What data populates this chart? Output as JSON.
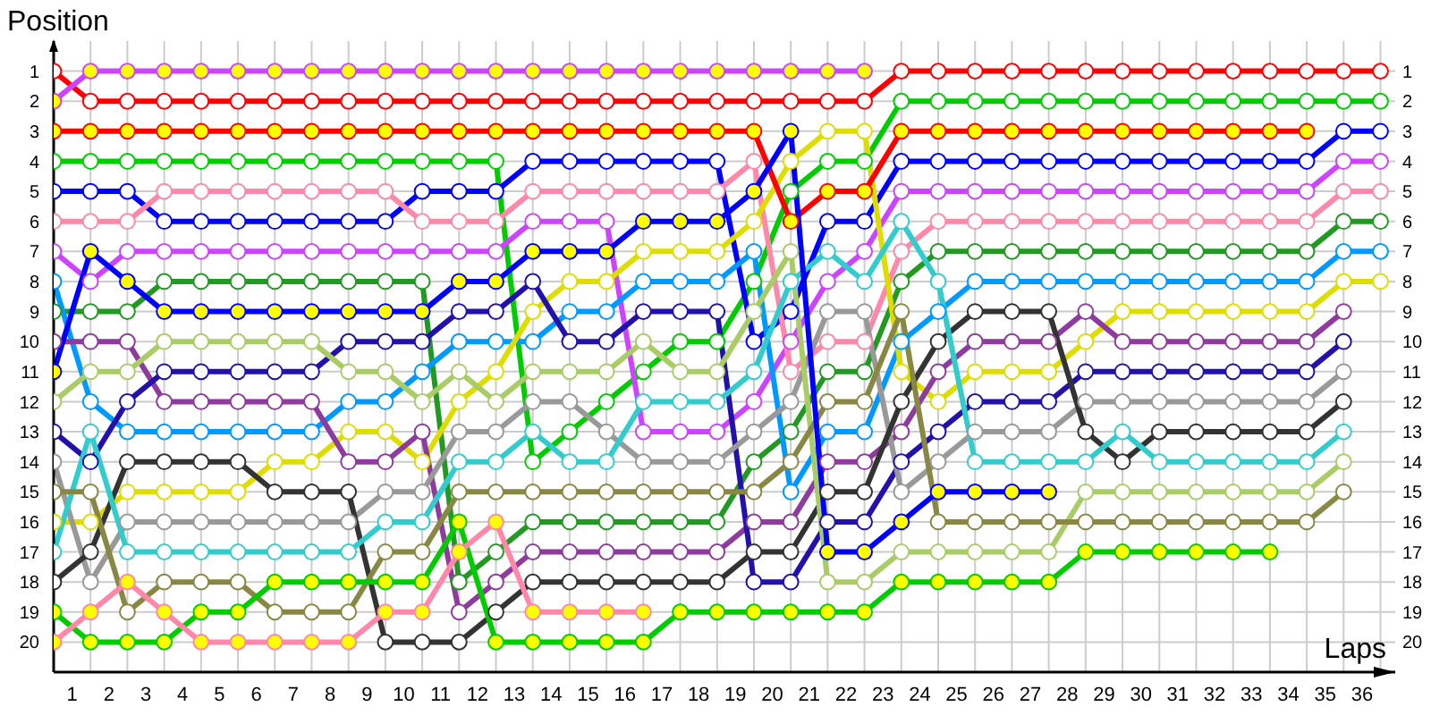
{
  "chart_data": {
    "type": "line",
    "xlabel": "Laps",
    "ylabel": "Position",
    "x": [
      0,
      1,
      2,
      3,
      4,
      5,
      6,
      7,
      8,
      9,
      10,
      11,
      12,
      13,
      14,
      15,
      16,
      17,
      18,
      19,
      20,
      21,
      22,
      23,
      24,
      25,
      26,
      27,
      28,
      29,
      30,
      31,
      32,
      33,
      34,
      35,
      36
    ],
    "xlim": [
      0,
      36.4
    ],
    "xticks": [
      {
        "value": 0.5,
        "label": "1"
      },
      {
        "value": 1.5,
        "label": "2"
      },
      {
        "value": 2.5,
        "label": "3"
      },
      {
        "value": 3.5,
        "label": "4"
      },
      {
        "value": 4.5,
        "label": "5"
      },
      {
        "value": 5.5,
        "label": "6"
      },
      {
        "value": 6.5,
        "label": "7"
      },
      {
        "value": 7.5,
        "label": "8"
      },
      {
        "value": 8.5,
        "label": "9"
      },
      {
        "value": 9.5,
        "label": "10"
      },
      {
        "value": 10.5,
        "label": "11"
      },
      {
        "value": 11.5,
        "label": "12"
      },
      {
        "value": 12.5,
        "label": "13"
      },
      {
        "value": 13.5,
        "label": "14"
      },
      {
        "value": 14.5,
        "label": "15"
      },
      {
        "value": 15.5,
        "label": "16"
      },
      {
        "value": 16.5,
        "label": "17"
      },
      {
        "value": 17.5,
        "label": "18"
      },
      {
        "value": 18.5,
        "label": "19"
      },
      {
        "value": 19.5,
        "label": "20"
      },
      {
        "value": 20.5,
        "label": "21"
      },
      {
        "value": 21.5,
        "label": "22"
      },
      {
        "value": 22.5,
        "label": "23"
      },
      {
        "value": 23.5,
        "label": "24"
      },
      {
        "value": 24.5,
        "label": "25"
      },
      {
        "value": 25.5,
        "label": "26"
      },
      {
        "value": 26.5,
        "label": "27"
      },
      {
        "value": 27.5,
        "label": "28"
      },
      {
        "value": 28.5,
        "label": "29"
      },
      {
        "value": 29.5,
        "label": "30"
      },
      {
        "value": 30.5,
        "label": "31"
      },
      {
        "value": 31.5,
        "label": "32"
      },
      {
        "value": 32.5,
        "label": "33"
      },
      {
        "value": 33.5,
        "label": "34"
      },
      {
        "value": 34.5,
        "label": "35"
      },
      {
        "value": 35.5,
        "label": "36"
      }
    ],
    "ylim": [
      21,
      0
    ],
    "yticks": [
      1,
      2,
      3,
      4,
      5,
      6,
      7,
      8,
      9,
      10,
      11,
      12,
      13,
      14,
      15,
      16,
      17,
      18,
      19,
      20
    ],
    "y2lim": [
      21,
      0
    ],
    "y2ticks": [
      1,
      2,
      3,
      4,
      5,
      6,
      7,
      8,
      9,
      10,
      11,
      12,
      13,
      14,
      15,
      16,
      17,
      18,
      19,
      20
    ],
    "grid": true,
    "marker": "circle",
    "line_style": "solid",
    "series": [
      {
        "color": "#ff0000",
        "values": [
          1,
          2,
          2,
          2,
          2,
          2,
          2,
          2,
          2,
          2,
          2,
          2,
          2,
          2,
          2,
          2,
          2,
          2,
          2,
          2,
          2,
          2,
          2,
          1,
          1,
          1,
          1,
          1,
          1,
          1,
          1,
          1,
          1,
          1,
          1,
          1,
          1
        ]
      },
      {
        "color": "#00cc00",
        "values": [
          4,
          4,
          4,
          4,
          4,
          4,
          4,
          4,
          4,
          4,
          4,
          4,
          4,
          14,
          13,
          12,
          11,
          10,
          10,
          8,
          5,
          4,
          4,
          2,
          2,
          2,
          2,
          2,
          2,
          2,
          2,
          2,
          2,
          2,
          2,
          2,
          2
        ]
      },
      {
        "color": "#0000ff",
        "values": [
          5,
          5,
          5,
          6,
          6,
          6,
          6,
          6,
          6,
          6,
          5,
          5,
          5,
          4,
          4,
          4,
          4,
          4,
          4,
          10,
          9,
          6,
          6,
          4,
          4,
          4,
          4,
          4,
          4,
          4,
          4,
          4,
          4,
          4,
          4,
          3,
          3
        ]
      },
      {
        "color": "#cc44ff",
        "values": [
          7,
          8,
          7,
          7,
          7,
          7,
          7,
          7,
          7,
          7,
          7,
          7,
          7,
          6,
          6,
          6,
          13,
          13,
          13,
          12,
          10,
          8,
          7,
          5,
          5,
          5,
          5,
          5,
          5,
          5,
          5,
          5,
          5,
          5,
          5,
          4,
          4
        ]
      },
      {
        "color": "#ff88aa",
        "values": [
          6,
          6,
          6,
          5,
          5,
          5,
          5,
          5,
          5,
          5,
          6,
          6,
          6,
          5,
          5,
          5,
          5,
          5,
          5,
          4,
          11,
          10,
          10,
          7,
          6,
          6,
          6,
          6,
          6,
          6,
          6,
          6,
          6,
          6,
          6,
          5,
          5
        ]
      },
      {
        "color": "#229922",
        "values": [
          9,
          9,
          9,
          8,
          8,
          8,
          8,
          8,
          8,
          8,
          8,
          18,
          17,
          16,
          16,
          16,
          16,
          16,
          16,
          14,
          13,
          11,
          11,
          8,
          7,
          7,
          7,
          7,
          7,
          7,
          7,
          7,
          7,
          7,
          7,
          6,
          6
        ]
      },
      {
        "color": "#0099ff",
        "values": [
          8,
          12,
          13,
          13,
          13,
          13,
          13,
          13,
          12,
          12,
          11,
          10,
          10,
          10,
          9,
          9,
          8,
          8,
          8,
          7,
          15,
          13,
          13,
          10,
          9,
          8,
          8,
          8,
          8,
          8,
          8,
          8,
          8,
          8,
          8,
          7,
          7
        ]
      },
      {
        "color": "#dddd00",
        "values": [
          16,
          16,
          15,
          15,
          15,
          15,
          14,
          14,
          13,
          13,
          14,
          12,
          11,
          9,
          8,
          8,
          7,
          7,
          7,
          6,
          4,
          3,
          3,
          11,
          12,
          11,
          11,
          11,
          10,
          9,
          9,
          9,
          9,
          9,
          9,
          8,
          8
        ]
      },
      {
        "color": "#8e3a9e",
        "values": [
          10,
          10,
          10,
          12,
          12,
          12,
          12,
          12,
          14,
          14,
          13,
          19,
          18,
          17,
          17,
          17,
          17,
          17,
          17,
          16,
          16,
          14,
          14,
          13,
          11,
          10,
          10,
          10,
          9,
          10,
          10,
          10,
          10,
          10,
          10,
          9,
          null
        ]
      },
      {
        "color": "#2211aa",
        "values": [
          13,
          14,
          12,
          11,
          11,
          11,
          11,
          11,
          10,
          10,
          10,
          9,
          9,
          8,
          10,
          10,
          9,
          9,
          9,
          18,
          18,
          16,
          16,
          14,
          13,
          12,
          12,
          12,
          11,
          11,
          11,
          11,
          11,
          11,
          11,
          10,
          null
        ]
      },
      {
        "color": "#999999",
        "values": [
          14,
          18,
          16,
          16,
          16,
          16,
          16,
          16,
          16,
          15,
          15,
          13,
          13,
          12,
          12,
          13,
          14,
          14,
          14,
          13,
          12,
          9,
          9,
          15,
          14,
          13,
          13,
          13,
          12,
          12,
          12,
          12,
          12,
          12,
          12,
          11,
          null
        ]
      },
      {
        "color": "#333333",
        "values": [
          18,
          17,
          14,
          14,
          14,
          14,
          15,
          15,
          15,
          20,
          20,
          20,
          19,
          18,
          18,
          18,
          18,
          18,
          18,
          17,
          17,
          15,
          15,
          12,
          10,
          9,
          9,
          9,
          13,
          14,
          13,
          13,
          13,
          13,
          13,
          12,
          null
        ]
      },
      {
        "color": "#33cccc",
        "values": [
          17,
          13,
          17,
          17,
          17,
          17,
          17,
          17,
          17,
          16,
          16,
          14,
          14,
          13,
          14,
          14,
          12,
          12,
          12,
          11,
          8,
          7,
          8,
          6,
          8,
          14,
          14,
          14,
          14,
          13,
          14,
          14,
          14,
          14,
          14,
          13,
          null
        ]
      },
      {
        "color": "#aacc66",
        "values": [
          12,
          11,
          11,
          10,
          10,
          10,
          10,
          10,
          11,
          11,
          12,
          11,
          12,
          11,
          11,
          11,
          10,
          11,
          11,
          9,
          7,
          18,
          18,
          17,
          17,
          17,
          17,
          17,
          15,
          15,
          15,
          15,
          15,
          15,
          15,
          14,
          null
        ]
      },
      {
        "color": "#888844",
        "values": [
          15,
          15,
          19,
          18,
          18,
          18,
          19,
          19,
          19,
          17,
          17,
          15,
          15,
          15,
          15,
          15,
          15,
          15,
          15,
          15,
          14,
          12,
          12,
          9,
          16,
          16,
          16,
          16,
          16,
          16,
          16,
          16,
          16,
          16,
          16,
          15,
          null
        ]
      },
      {
        "color": "#ff0000",
        "values": [
          3,
          3,
          3,
          3,
          3,
          3,
          3,
          3,
          3,
          3,
          3,
          3,
          3,
          3,
          3,
          3,
          3,
          3,
          3,
          3,
          6,
          5,
          5,
          3,
          3,
          3,
          3,
          3,
          3,
          3,
          3,
          3,
          3,
          3,
          3,
          null,
          null
        ],
        "colors": [
          "#ffff00",
          "#ffff00",
          "#ffff00",
          "#ffff00",
          "#ffff00",
          "#ffff00",
          "#ffff00",
          "#ffff00",
          "#ffff00",
          "#ffff00",
          "#ffff00",
          "#ffff00",
          "#ffff00",
          "#ffff00",
          "#ffff00",
          "#ffff00",
          "#ffff00",
          "#ffff00",
          "#ffff00",
          "#ffff00",
          "#ffff00",
          "#ffff00",
          "#ffff00",
          "#ffff00",
          "#ffff00",
          "#ffff00",
          "#ffff00",
          "#ffff00",
          "#ffff00",
          "#ffff00",
          "#ffff00",
          "#ffff00",
          "#ffff00",
          "#ffff00",
          "#ffff00",
          null,
          null
        ]
      },
      {
        "color": "#00cc00",
        "values": [
          19,
          20,
          20,
          20,
          19,
          19,
          18,
          18,
          18,
          18,
          18,
          16,
          20,
          20,
          20,
          20,
          20,
          19,
          19,
          19,
          19,
          19,
          19,
          18,
          18,
          18,
          18,
          18,
          17,
          17,
          17,
          17,
          17,
          17,
          null,
          null,
          null
        ],
        "colors": [
          "#ffff00",
          "#ffff00",
          "#ffff00",
          "#ffff00",
          "#ffff00",
          "#ffff00",
          "#ffff00",
          "#ffff00",
          "#ffff00",
          "#ffff00",
          "#ffff00",
          "#ffff00",
          "#ffff00",
          "#ffff00",
          "#ffff00",
          "#ffff00",
          "#ffff00",
          "#ffff00",
          "#ffff00",
          "#ffff00",
          "#ffff00",
          "#ffff00",
          "#ffff00",
          "#ffff00",
          "#ffff00",
          "#ffff00",
          "#ffff00",
          "#ffff00",
          "#ffff00",
          "#ffff00",
          "#ffff00",
          "#ffff00",
          "#ffff00",
          "#ffff00",
          null,
          null,
          null
        ]
      },
      {
        "color": "#0000ff",
        "values": [
          11,
          7,
          8,
          9,
          9,
          9,
          9,
          9,
          9,
          9,
          9,
          8,
          8,
          7,
          7,
          7,
          6,
          6,
          6,
          5,
          3,
          17,
          17,
          16,
          15,
          15,
          15,
          15,
          null,
          null,
          null,
          null,
          null,
          null,
          null,
          null,
          null
        ],
        "colors": [
          "#ffff00",
          "#ffff00",
          "#ffff00",
          "#ffff00",
          "#ffff00",
          "#ffff00",
          "#ffff00",
          "#ffff00",
          "#ffff00",
          "#ffff00",
          "#ffff00",
          "#ffff00",
          "#ffff00",
          "#ffff00",
          "#ffff00",
          "#ffff00",
          "#ffff00",
          "#ffff00",
          "#ffff00",
          "#ffff00",
          "#ffff00",
          "#ffff00",
          "#ffff00",
          "#ffff00",
          "#ffff00",
          "#ffff00",
          "#ffff00",
          "#ffff00",
          null,
          null,
          null,
          null,
          null,
          null,
          null,
          null,
          null
        ]
      },
      {
        "color": "#ff88aa",
        "values": [
          20,
          19,
          18,
          19,
          20,
          20,
          20,
          20,
          20,
          19,
          19,
          17,
          16,
          19,
          19,
          19,
          19,
          null,
          null,
          null,
          null,
          null,
          null,
          null,
          null,
          null,
          null,
          null,
          null,
          null,
          null,
          null,
          null,
          null,
          null,
          null,
          null
        ],
        "colors": [
          "#ffff00",
          "#ffff00",
          "#ffff00",
          "#ffff00",
          "#ffff00",
          "#ffff00",
          "#ffff00",
          "#ffff00",
          "#ffff00",
          "#ffff00",
          "#ffff00",
          "#ffff00",
          "#ffff00",
          "#ffff00",
          "#ffff00",
          "#ffff00",
          "#ffff00",
          null,
          null,
          null,
          null,
          null,
          null,
          null,
          null,
          null,
          null,
          null,
          null,
          null,
          null,
          null,
          null,
          null,
          null,
          null,
          null
        ]
      },
      {
        "color": "#cc44ff",
        "values": [
          2,
          1,
          1,
          1,
          1,
          1,
          1,
          1,
          1,
          1,
          1,
          1,
          1,
          1,
          1,
          1,
          1,
          1,
          1,
          1,
          1,
          1,
          1,
          null,
          null,
          null,
          null,
          null,
          null,
          null,
          null,
          null,
          null,
          null,
          null,
          null,
          null
        ],
        "colors": [
          "#ffff00",
          "#ffff00",
          "#ffff00",
          "#ffff00",
          "#ffff00",
          "#ffff00",
          "#ffff00",
          "#ffff00",
          "#ffff00",
          "#ffff00",
          "#ffff00",
          "#ffff00",
          "#ffff00",
          "#ffff00",
          "#ffff00",
          "#ffff00",
          "#ffff00",
          "#ffff00",
          "#ffff00",
          "#ffff00",
          "#ffff00",
          "#ffff00",
          "#ffff00",
          null,
          null,
          null,
          null,
          null,
          null,
          null,
          null,
          null,
          null,
          null,
          null,
          null,
          null
        ]
      }
    ]
  }
}
